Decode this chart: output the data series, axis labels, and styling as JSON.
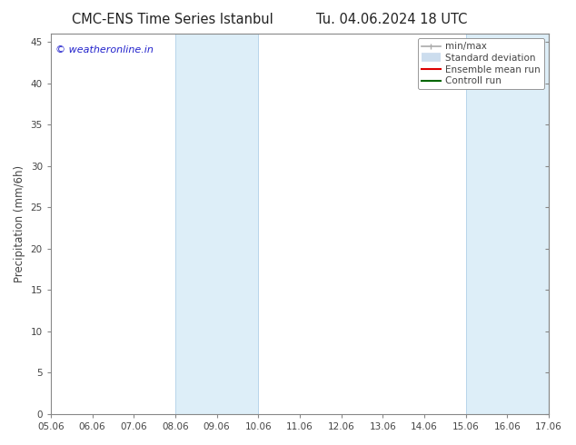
{
  "title": "CMC-ENS Time Series Istanbul",
  "title2": "Tu. 04.06.2024 18 UTC",
  "ylabel": "Precipitation (mm/6h)",
  "xlim": [
    0,
    12
  ],
  "ylim": [
    0,
    46
  ],
  "yticks": [
    0,
    5,
    10,
    15,
    20,
    25,
    30,
    35,
    40,
    45
  ],
  "xtick_labels": [
    "05.06",
    "06.06",
    "07.06",
    "08.06",
    "09.06",
    "10.06",
    "11.06",
    "12.06",
    "13.06",
    "14.06",
    "15.06",
    "16.06",
    "17.06"
  ],
  "xtick_positions": [
    0,
    1,
    2,
    3,
    4,
    5,
    6,
    7,
    8,
    9,
    10,
    11,
    12
  ],
  "shaded_regions": [
    {
      "xstart": 3,
      "xend": 5,
      "color": "#ddeef8"
    },
    {
      "xstart": 10,
      "xend": 12,
      "color": "#ddeef8"
    }
  ],
  "shade_edge_color": "#b8d4ea",
  "watermark": "© weatheronline.in",
  "watermark_color": "#2222cc",
  "background_color": "#ffffff",
  "plot_bg_color": "#ffffff",
  "spine_color": "#888888",
  "tick_color": "#444444",
  "legend_items": [
    {
      "label": "min/max",
      "color": "#aaaaaa",
      "lw": 1.2,
      "style": "caps"
    },
    {
      "label": "Standard deviation",
      "color": "#ccddee",
      "lw": 7,
      "style": "thick"
    },
    {
      "label": "Ensemble mean run",
      "color": "#dd0000",
      "lw": 1.5,
      "style": "line"
    },
    {
      "label": "Controll run",
      "color": "#006600",
      "lw": 1.5,
      "style": "line"
    }
  ],
  "title_fontsize": 10.5,
  "tick_fontsize": 7.5,
  "ylabel_fontsize": 8.5,
  "legend_fontsize": 7.5,
  "watermark_fontsize": 8
}
